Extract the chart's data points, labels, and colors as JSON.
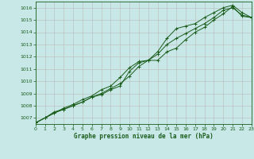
{
  "title": "Graphe pression niveau de la mer (hPa)",
  "background_color": "#c8e8e8",
  "grid_color": "#b8b8b8",
  "line_color": "#1a5c1a",
  "xlim": [
    0,
    23
  ],
  "ylim": [
    1006.5,
    1016.5
  ],
  "xticks": [
    0,
    1,
    2,
    3,
    4,
    5,
    6,
    7,
    8,
    9,
    10,
    11,
    12,
    13,
    14,
    15,
    16,
    17,
    18,
    19,
    20,
    21,
    22,
    23
  ],
  "yticks": [
    1007,
    1008,
    1009,
    1010,
    1011,
    1012,
    1013,
    1014,
    1015,
    1016
  ],
  "series1": {
    "x": [
      0,
      1,
      2,
      3,
      4,
      5,
      6,
      7,
      8,
      9,
      10,
      11,
      12,
      13,
      14,
      15,
      16,
      17,
      18,
      19,
      20,
      21,
      22,
      23
    ],
    "y": [
      1006.6,
      1007.0,
      1007.5,
      1007.7,
      1008.0,
      1008.3,
      1008.7,
      1008.9,
      1009.3,
      1009.6,
      1010.8,
      1011.5,
      1011.7,
      1011.7,
      1012.4,
      1012.7,
      1013.4,
      1014.0,
      1014.4,
      1015.0,
      1015.5,
      1016.1,
      1015.3,
      1015.2
    ]
  },
  "series2": {
    "x": [
      0,
      1,
      2,
      3,
      4,
      5,
      6,
      7,
      8,
      9,
      10,
      11,
      12,
      13,
      14,
      15,
      16,
      17,
      18,
      19,
      20,
      21,
      22,
      23
    ],
    "y": [
      1006.6,
      1007.0,
      1007.4,
      1007.8,
      1008.1,
      1008.5,
      1008.8,
      1009.3,
      1009.6,
      1010.3,
      1011.1,
      1011.6,
      1011.7,
      1012.4,
      1013.5,
      1014.3,
      1014.5,
      1014.7,
      1015.2,
      1015.6,
      1016.0,
      1016.2,
      1015.6,
      1015.2
    ]
  },
  "series3": {
    "x": [
      0,
      1,
      2,
      3,
      4,
      5,
      6,
      7,
      8,
      9,
      10,
      11,
      12,
      13,
      14,
      15,
      16,
      17,
      18,
      19,
      20,
      21,
      22,
      23
    ],
    "y": [
      1006.6,
      1007.0,
      1007.4,
      1007.7,
      1008.0,
      1008.3,
      1008.7,
      1009.0,
      1009.4,
      1009.8,
      1010.4,
      1011.2,
      1011.7,
      1012.2,
      1013.0,
      1013.5,
      1013.9,
      1014.3,
      1014.7,
      1015.2,
      1015.8,
      1016.0,
      1015.4,
      1015.2
    ]
  }
}
